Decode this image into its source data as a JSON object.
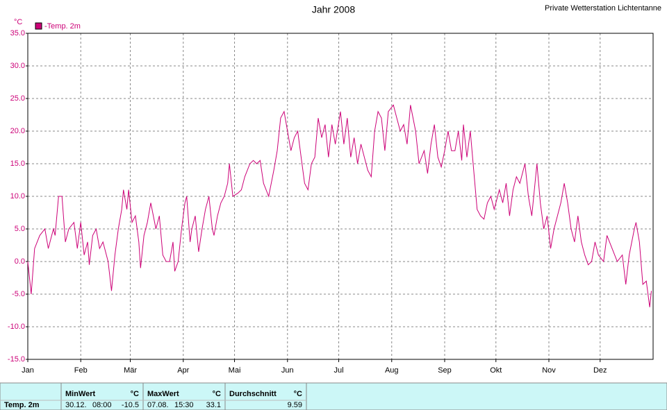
{
  "chart_data": {
    "type": "line",
    "title": "Jahr 2008",
    "subtitle": "Private Wetterstation Lichtentanne",
    "y_label": "°C",
    "x": [
      1,
      3,
      5,
      8,
      11,
      13,
      16,
      17,
      19,
      21,
      23,
      25,
      28,
      30,
      32,
      34,
      36,
      37,
      39,
      41,
      43,
      45,
      48,
      50,
      52,
      54,
      56,
      57,
      59,
      60,
      62,
      64,
      66,
      67,
      69,
      71,
      73,
      76,
      78,
      80,
      82,
      84,
      86,
      87,
      89,
      91,
      93,
      94,
      96,
      97,
      99,
      101,
      103,
      105,
      107,
      109,
      110,
      112,
      114,
      116,
      118,
      119,
      121,
      124,
      126,
      128,
      131,
      133,
      135,
      137,
      139,
      142,
      145,
      147,
      149,
      151,
      153,
      155,
      157,
      159,
      161,
      163,
      165,
      167,
      169,
      171,
      173,
      175,
      177,
      179,
      181,
      184,
      186,
      188,
      190,
      192,
      194,
      196,
      198,
      200,
      202,
      204,
      206,
      208,
      210,
      212,
      215,
      217,
      219,
      221,
      223,
      225,
      228,
      230,
      233,
      235,
      237,
      239,
      241,
      243,
      245,
      247,
      249,
      251,
      253,
      255,
      256,
      258,
      260,
      262,
      264,
      266,
      268,
      270,
      272,
      274,
      277,
      279,
      281,
      283,
      285,
      287,
      289,
      291,
      292,
      294,
      296,
      299,
      301,
      303,
      305,
      307,
      309,
      311,
      313,
      315,
      317,
      319,
      321,
      323,
      325,
      327,
      329,
      331,
      333,
      335,
      338,
      340,
      343,
      346,
      349,
      351,
      353,
      356,
      357,
      359,
      361,
      363,
      365,
      366
    ],
    "series": [
      {
        "name": "-Temp. 2m",
        "color": "#cc0077",
        "values": [
          0,
          -5,
          2,
          4,
          5,
          2,
          5,
          4,
          10,
          10,
          3,
          5,
          6,
          2,
          6,
          1,
          3,
          -0.5,
          4,
          5,
          2,
          3,
          0,
          -4.5,
          1,
          5,
          8,
          11,
          8,
          11,
          6,
          7,
          3,
          -1,
          4,
          6,
          9,
          5,
          7,
          1,
          0,
          0,
          3,
          -1.5,
          0,
          5,
          9,
          10,
          3,
          5,
          7,
          1.5,
          5,
          8,
          10,
          5,
          4,
          7,
          9,
          10,
          12,
          15,
          10,
          10.5,
          11,
          13,
          15,
          15.5,
          15,
          15.5,
          12,
          10,
          14,
          17,
          22,
          23,
          20,
          17,
          19,
          20,
          16,
          12,
          11,
          15,
          16,
          22,
          19,
          21,
          16,
          21,
          18,
          23,
          18,
          22,
          16,
          19,
          15,
          18,
          16,
          14,
          13,
          20,
          23,
          22,
          17,
          23,
          24,
          22,
          20,
          21,
          18,
          24,
          20,
          15,
          17,
          13.5,
          18,
          21,
          16,
          14.5,
          17,
          20,
          17,
          17,
          20,
          15.5,
          21,
          16,
          20,
          14,
          8,
          7,
          6.5,
          9,
          10,
          8,
          11,
          9,
          12,
          7,
          11,
          13,
          12,
          14,
          15,
          10,
          7,
          15,
          9,
          5,
          7,
          2,
          5,
          7,
          9,
          12,
          9,
          5,
          3,
          7,
          3,
          1,
          -0.5,
          0,
          3,
          1,
          0,
          4,
          2,
          0,
          1,
          -3.5,
          1,
          5,
          6,
          3,
          -3.5,
          -3,
          -7,
          -4.5
        ]
      }
    ],
    "xlim": [
      1,
      367
    ],
    "xticks": [
      {
        "value": 1,
        "label": "Jan"
      },
      {
        "value": 32,
        "label": "Feb"
      },
      {
        "value": 61,
        "label": "Mär"
      },
      {
        "value": 92,
        "label": "Apr"
      },
      {
        "value": 122,
        "label": "Mai"
      },
      {
        "value": 153,
        "label": "Jun"
      },
      {
        "value": 183,
        "label": "Jul"
      },
      {
        "value": 214,
        "label": "Aug"
      },
      {
        "value": 245,
        "label": "Sep"
      },
      {
        "value": 275,
        "label": "Okt"
      },
      {
        "value": 306,
        "label": "Nov"
      },
      {
        "value": 336,
        "label": "Dez"
      }
    ],
    "ylim": [
      -15,
      35
    ],
    "yticks": [
      {
        "value": -15,
        "label": "-15.0"
      },
      {
        "value": -10,
        "label": "-10.0"
      },
      {
        "value": -5,
        "label": "-5.0"
      },
      {
        "value": 0,
        "label": "0.0"
      },
      {
        "value": 5,
        "label": "5.0"
      },
      {
        "value": 10,
        "label": "10.0"
      },
      {
        "value": 15,
        "label": "15.0"
      },
      {
        "value": 20,
        "label": "20.0"
      },
      {
        "value": 25,
        "label": "25.0"
      },
      {
        "value": 30,
        "label": "30.0"
      },
      {
        "value": 35,
        "label": "35.0"
      }
    ],
    "grid": true
  },
  "summary": {
    "row_label": "Temp. 2m",
    "columns": [
      {
        "title": "MinWert",
        "unit": "°C",
        "date": "30.12.",
        "time": "08:00",
        "value": -10.5
      },
      {
        "title": "MaxWert",
        "unit": "°C",
        "date": "07.08.",
        "time": "15:30",
        "value": 33.1
      },
      {
        "title": "Durchschnitt",
        "unit": "°C",
        "value": 9.59
      }
    ]
  }
}
